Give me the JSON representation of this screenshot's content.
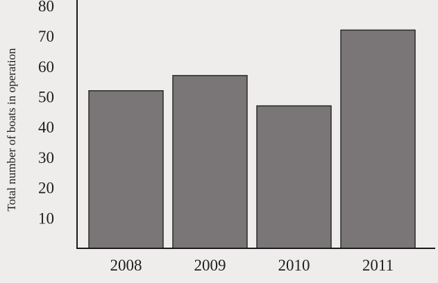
{
  "chart_data": {
    "type": "bar",
    "categories": [
      "2008",
      "2009",
      "2010",
      "2011"
    ],
    "values": [
      52,
      57,
      47,
      72
    ],
    "yticks": [
      "10",
      "20",
      "30",
      "40",
      "50",
      "60",
      "70",
      "80"
    ],
    "ylabel": "Total number of boats in operation",
    "xlabel": "",
    "title": "",
    "ylim": [
      0,
      84
    ],
    "grid": false,
    "legend": "none",
    "bar_color": "#7a7577",
    "bar_edge_color": "#2a2a2a",
    "axis_color": "#1a1a1a"
  }
}
